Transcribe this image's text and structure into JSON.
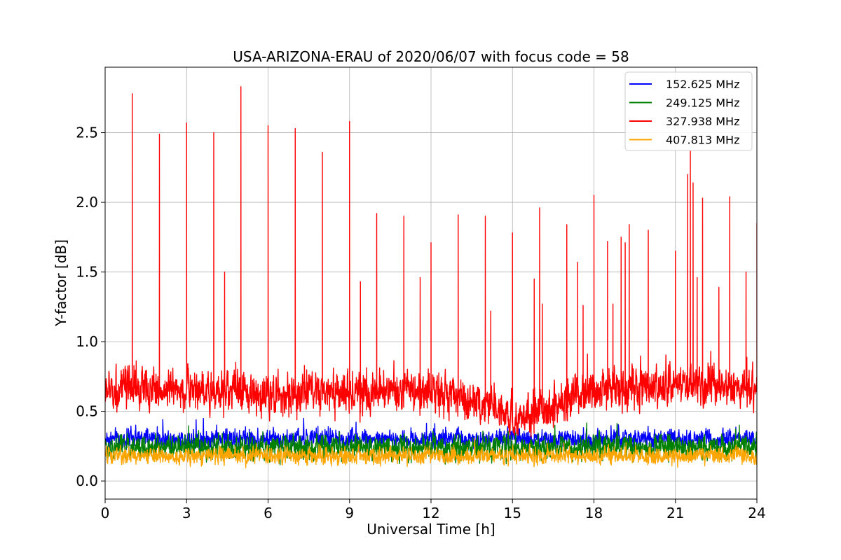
{
  "chart_data": {
    "type": "line",
    "title": "USA-ARIZONA-ERAU of 2020/06/07 with focus code = 58",
    "xlabel": "Universal Time [h]",
    "ylabel": "Y-factor [dB]",
    "xlim": [
      0,
      24
    ],
    "ylim": [
      -0.13,
      2.97
    ],
    "xticks": [
      0,
      3,
      6,
      9,
      12,
      15,
      18,
      21,
      24
    ],
    "xtick_labels": [
      "0",
      "3",
      "6",
      "9",
      "12",
      "15",
      "18",
      "21",
      "24"
    ],
    "yticks": [
      0.0,
      0.5,
      1.0,
      1.5,
      2.0,
      2.5
    ],
    "ytick_labels": [
      "0.0",
      "0.5",
      "1.0",
      "1.5",
      "2.0",
      "2.5"
    ],
    "grid": true,
    "legend_position": "top-right",
    "series": [
      {
        "name": "152.625 MHz",
        "color": "#0000ff",
        "band": {
          "base": 0.3,
          "amplitude": 0.08,
          "min": 0.0,
          "max": 0.45
        }
      },
      {
        "name": "249.125 MHz",
        "color": "#008000",
        "band": {
          "base": 0.24,
          "amplitude": 0.1,
          "min": 0.02,
          "max": 0.42
        }
      },
      {
        "name": "327.938 MHz",
        "color": "#ff0000",
        "band_profile": [
          [
            0,
            0.65
          ],
          [
            3,
            0.66
          ],
          [
            6,
            0.62
          ],
          [
            9,
            0.63
          ],
          [
            12,
            0.64
          ],
          [
            14,
            0.55
          ],
          [
            15,
            0.45
          ],
          [
            16,
            0.5
          ],
          [
            18,
            0.65
          ],
          [
            21,
            0.7
          ],
          [
            24,
            0.65
          ]
        ],
        "band": {
          "amplitude": 0.17,
          "min": 0.0,
          "max": 1.3
        },
        "spikes": {
          "x": [
            1.0,
            2.0,
            3.0,
            4.0,
            4.4,
            5.0,
            6.0,
            7.0,
            8.0,
            9.0,
            9.4,
            10.0,
            11.0,
            11.6,
            12.0,
            13.0,
            14.0,
            14.2,
            15.0,
            15.8,
            16.0,
            16.1,
            17.0,
            17.4,
            17.6,
            18.0,
            18.5,
            18.7,
            19.0,
            19.15,
            19.3,
            20.0,
            21.0,
            21.45,
            21.55,
            21.65,
            21.8,
            22.0,
            22.6,
            23.0,
            23.6,
            24.0
          ],
          "y": [
            2.78,
            2.49,
            2.57,
            2.5,
            1.5,
            2.83,
            2.55,
            2.53,
            2.36,
            2.58,
            1.43,
            1.92,
            1.9,
            1.46,
            1.71,
            1.91,
            1.9,
            1.22,
            1.78,
            1.45,
            1.96,
            1.27,
            1.84,
            1.57,
            1.26,
            2.05,
            1.72,
            1.27,
            1.75,
            1.71,
            1.84,
            1.8,
            1.65,
            2.2,
            2.37,
            2.14,
            1.46,
            2.03,
            1.39,
            2.04,
            1.5,
            1.85
          ]
        }
      },
      {
        "name": "407.813 MHz",
        "color": "#ffa500",
        "band": {
          "base": 0.18,
          "amplitude": 0.07,
          "min": 0.0,
          "max": 0.32
        }
      }
    ]
  }
}
